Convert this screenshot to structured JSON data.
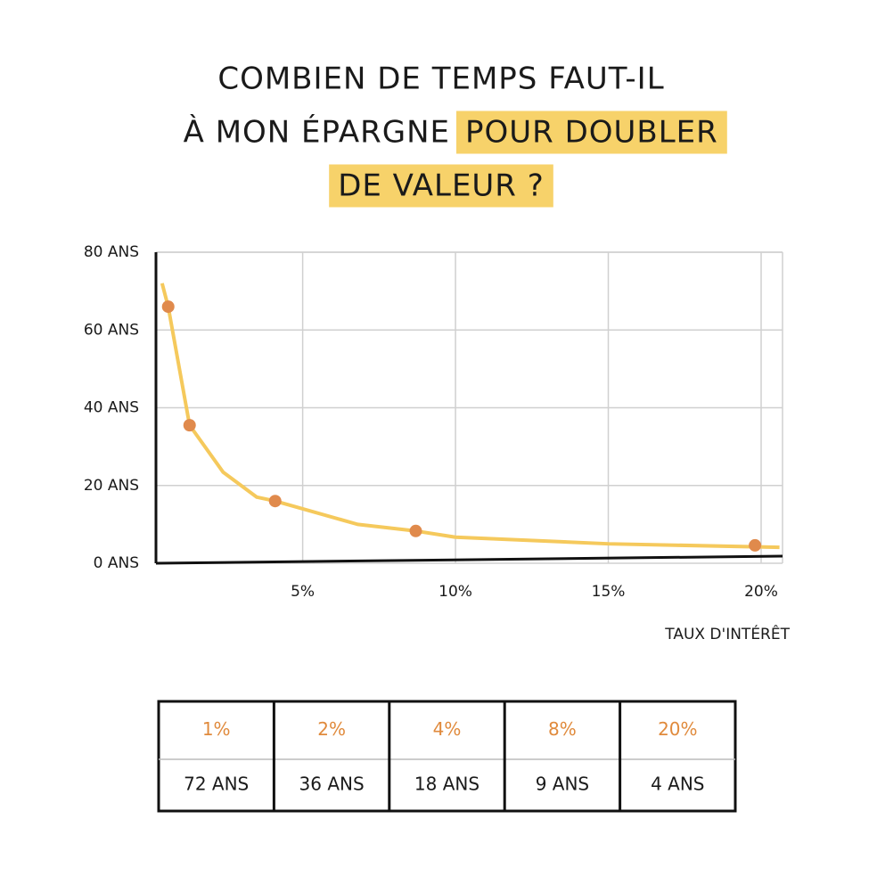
{
  "title": {
    "line1": "COMBIEN DE TEMPS FAUT-IL",
    "line2": "À MON ÉPARGNE",
    "highlight1": "POUR DOUBLER",
    "highlight2": "DE VALEUR ?"
  },
  "chart_data": {
    "type": "line",
    "x_label": "TAUX D'INTÉRÊT",
    "series": [
      {
        "name": "courbe",
        "color": "#f5c95c",
        "style": "line",
        "x": [
          0.4,
          0.6,
          1.3,
          2.4,
          3.5,
          4.1,
          6.8,
          8.7,
          10,
          15,
          20.6
        ],
        "values": [
          72,
          66,
          35.5,
          23.4,
          17,
          16,
          10,
          8.3,
          6.7,
          5,
          4.1
        ]
      },
      {
        "name": "points",
        "color": "#e08a4c",
        "style": "points",
        "x": [
          0.6,
          1.3,
          4.1,
          8.7,
          19.8
        ],
        "values": [
          66,
          35.5,
          16,
          8.3,
          4.6
        ]
      }
    ],
    "xlim": [
      0.2,
      20.7
    ],
    "ylim": [
      0,
      80
    ],
    "xticks": [
      {
        "value": 5,
        "label": "5%"
      },
      {
        "value": 10,
        "label": "10%"
      },
      {
        "value": 15,
        "label": "15%"
      },
      {
        "value": 20,
        "label": "20%"
      }
    ],
    "yticks": [
      {
        "value": 0,
        "label": "0 ANS"
      },
      {
        "value": 20,
        "label": "20 ANS"
      },
      {
        "value": 40,
        "label": "40 ANS"
      },
      {
        "value": 60,
        "label": "60 ANS"
      },
      {
        "value": 80,
        "label": "80 ANS"
      }
    ],
    "grid": true
  },
  "table": {
    "rows": [
      [
        "1%",
        "2%",
        "4%",
        "8%",
        "20%"
      ],
      [
        "72 ANS",
        "36 ANS",
        "18 ANS",
        "9 ANS",
        "4 ANS"
      ]
    ]
  }
}
